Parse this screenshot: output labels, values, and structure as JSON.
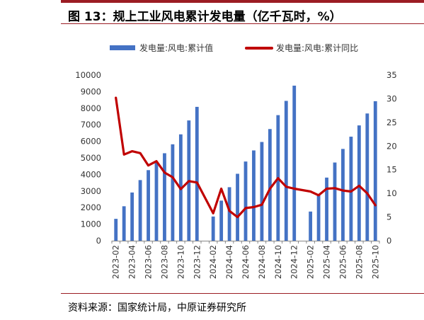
{
  "figure": {
    "title": "图 13：规上工业风电累计发电量（亿千瓦时，%）",
    "source": "资料来源：国家统计局，中原证券研究所"
  },
  "chart_data": {
    "type": "bar",
    "categories": [
      "2023-02",
      "2023-03",
      "2023-04",
      "2023-05",
      "2023-06",
      "2023-07",
      "2023-08",
      "2023-09",
      "2023-10",
      "2023-11",
      "2023-12",
      "2024-01",
      "2024-02",
      "2024-03",
      "2024-04",
      "2024-05",
      "2024-06",
      "2024-07",
      "2024-08",
      "2024-09",
      "2024-10",
      "2024-11",
      "2024-12",
      "2025-01",
      "2025-02",
      "2025-03",
      "2025-04",
      "2025-05",
      "2025-06",
      "2025-07",
      "2025-08",
      "2025-09",
      "2025-10"
    ],
    "tick_labels": [
      "2023-02",
      "2023-04",
      "2023-06",
      "2023-08",
      "2023-10",
      "2023-12",
      "2024-02",
      "2024-04",
      "2024-06",
      "2024-08",
      "2024-10",
      "2024-12",
      "2025-02",
      "2025-04",
      "2025-06",
      "2025-08",
      "2025-10"
    ],
    "series": [
      {
        "name": "发电量:风电:累计值",
        "type": "bar",
        "axis": "left",
        "color": "#4472c4",
        "values": [
          1320,
          2080,
          2910,
          3660,
          4260,
          4700,
          5280,
          5820,
          6420,
          7260,
          8080,
          null,
          1460,
          2420,
          3230,
          4040,
          4780,
          5450,
          5960,
          6740,
          7580,
          8440,
          9360,
          null,
          1760,
          2770,
          3810,
          4720,
          5540,
          6280,
          6960,
          7680,
          8420
        ]
      },
      {
        "name": "发电量:风电:累计同比",
        "type": "line",
        "axis": "right",
        "color": "#c00000",
        "values": [
          30.2,
          18.2,
          18.9,
          18.5,
          15.9,
          16.8,
          14.4,
          13.4,
          10.9,
          12.6,
          12.3,
          null,
          5.8,
          11.0,
          6.3,
          5.0,
          6.9,
          7.1,
          7.6,
          11.0,
          13.2,
          11.4,
          11.0,
          null,
          10.4,
          9.6,
          11.0,
          11.1,
          10.6,
          10.4,
          11.6,
          10.0,
          7.5
        ]
      }
    ],
    "y_left": {
      "min": 0,
      "max": 10000,
      "ticks": [
        0,
        1000,
        2000,
        3000,
        4000,
        5000,
        6000,
        7000,
        8000,
        9000,
        10000
      ]
    },
    "y_right": {
      "min": 0,
      "max": 35,
      "ticks": [
        0,
        5,
        10,
        15,
        20,
        25,
        30,
        35
      ]
    },
    "legend_position": "top",
    "grid": false
  }
}
